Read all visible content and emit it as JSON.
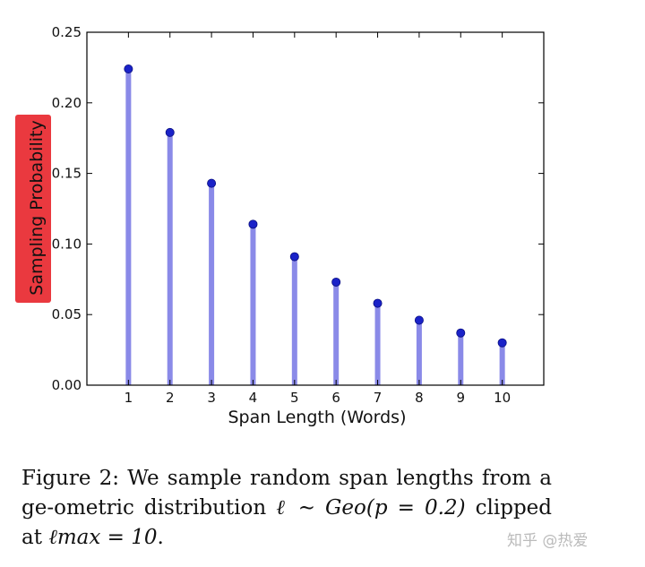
{
  "chart_data": {
    "type": "bar",
    "style": "stem",
    "categories": [
      "1",
      "2",
      "3",
      "4",
      "5",
      "6",
      "7",
      "8",
      "9",
      "10"
    ],
    "values": [
      0.224,
      0.179,
      0.143,
      0.114,
      0.091,
      0.073,
      0.058,
      0.046,
      0.037,
      0.03
    ],
    "xlabel": "Span Length (Words)",
    "ylabel": "Sampling Probability",
    "ylim": [
      0,
      0.25
    ],
    "yticks": [
      "0.00",
      "0.05",
      "0.10",
      "0.15",
      "0.20",
      "0.25"
    ],
    "grid": false,
    "stem_color": "#8a8ae8",
    "marker_color": "#1a22c8",
    "ylabel_highlight_color": "#e8242a"
  },
  "caption": {
    "prefix": "Figure 2: We sample random span lengths from a ge-ometric distribution ",
    "math1": "ℓ ∼ Geo(p = 0.2)",
    "middle": " clipped at ",
    "math2": "ℓmax = 10",
    "suffix": "."
  },
  "watermark": "知乎 @热爱"
}
